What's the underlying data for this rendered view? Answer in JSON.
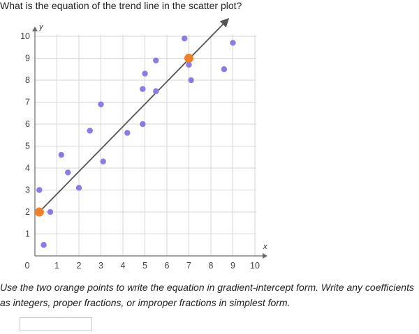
{
  "question": "What is the equation of the trend line in the scatter plot?",
  "instructions": "Use the two orange points to write the equation in gradient-intercept form. Write any coefficients as integers, proper fractions, or improper fractions in simplest form.",
  "answer": {
    "value": "",
    "placeholder": ""
  },
  "colors": {
    "points": "#8a7be6",
    "highlight": "#f0812b",
    "line": "#555555",
    "grid": "#d4d4d4",
    "axis": "#6b6b6b"
  },
  "chart_data": {
    "type": "scatter",
    "title": "",
    "xlabel": "x",
    "ylabel": "y",
    "xlim": [
      0,
      10
    ],
    "ylim": [
      0,
      10
    ],
    "xticks": [
      0,
      1,
      2,
      3,
      4,
      5,
      6,
      7,
      8,
      9,
      10
    ],
    "yticks": [
      1,
      2,
      3,
      4,
      5,
      6,
      7,
      8,
      9,
      10
    ],
    "grid": true,
    "points": [
      [
        0.2,
        3.0
      ],
      [
        0.4,
        0.5
      ],
      [
        0.7,
        2.0
      ],
      [
        1.2,
        4.6
      ],
      [
        1.5,
        3.8
      ],
      [
        2.0,
        3.1
      ],
      [
        2.5,
        5.7
      ],
      [
        3.0,
        6.9
      ],
      [
        3.1,
        4.3
      ],
      [
        4.2,
        5.6
      ],
      [
        4.9,
        7.6
      ],
      [
        4.9,
        6.0
      ],
      [
        5.0,
        8.3
      ],
      [
        5.5,
        8.9
      ],
      [
        5.5,
        7.5
      ],
      [
        6.8,
        9.9
      ],
      [
        7.0,
        8.7
      ],
      [
        7.1,
        8.0
      ],
      [
        8.6,
        8.5
      ],
      [
        9.0,
        9.7
      ]
    ],
    "highlighted_points": [
      [
        0.2,
        2
      ],
      [
        7,
        9
      ]
    ],
    "trend_line": {
      "start": [
        0.2,
        2
      ],
      "end": [
        8.8,
        10.8
      ]
    }
  }
}
